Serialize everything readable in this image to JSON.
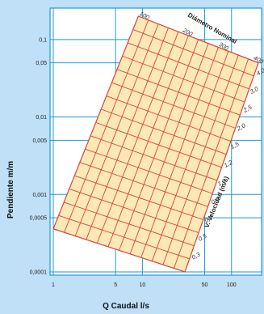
{
  "chart_data": {
    "type": "nomogram",
    "x_axis": {
      "label": "Q Caudal l/s",
      "scale": "log",
      "range": [
        1,
        200
      ],
      "ticks": [
        "1",
        "5",
        "10",
        "50",
        "100"
      ]
    },
    "y_axis": {
      "label": "Pendiente m/m",
      "scale": "log",
      "range": [
        0.0001,
        0.2
      ],
      "ticks": [
        "0,1",
        "0,05",
        "0,01",
        "0,005",
        "0,001",
        "0,0005",
        "0,0001"
      ]
    },
    "diameter_family": {
      "title": "Diámetro Nominal",
      "labels": [
        "100",
        "200",
        "300",
        "400"
      ]
    },
    "velocity_family": {
      "title": "V. Velocidad (m/s)",
      "labels": [
        "4,0",
        "3,0",
        "2,5",
        "2,0",
        "1,5",
        "1,2",
        "1,0",
        "0,9",
        "0,7",
        "0,5",
        "0,3"
      ]
    },
    "grid": true,
    "colors": {
      "background": "#bfe0f7",
      "plot_area": "#ffffff",
      "grid": "#1f9ad6",
      "band_fill": "#fde9b6",
      "band_lines": "#d9443b"
    }
  }
}
